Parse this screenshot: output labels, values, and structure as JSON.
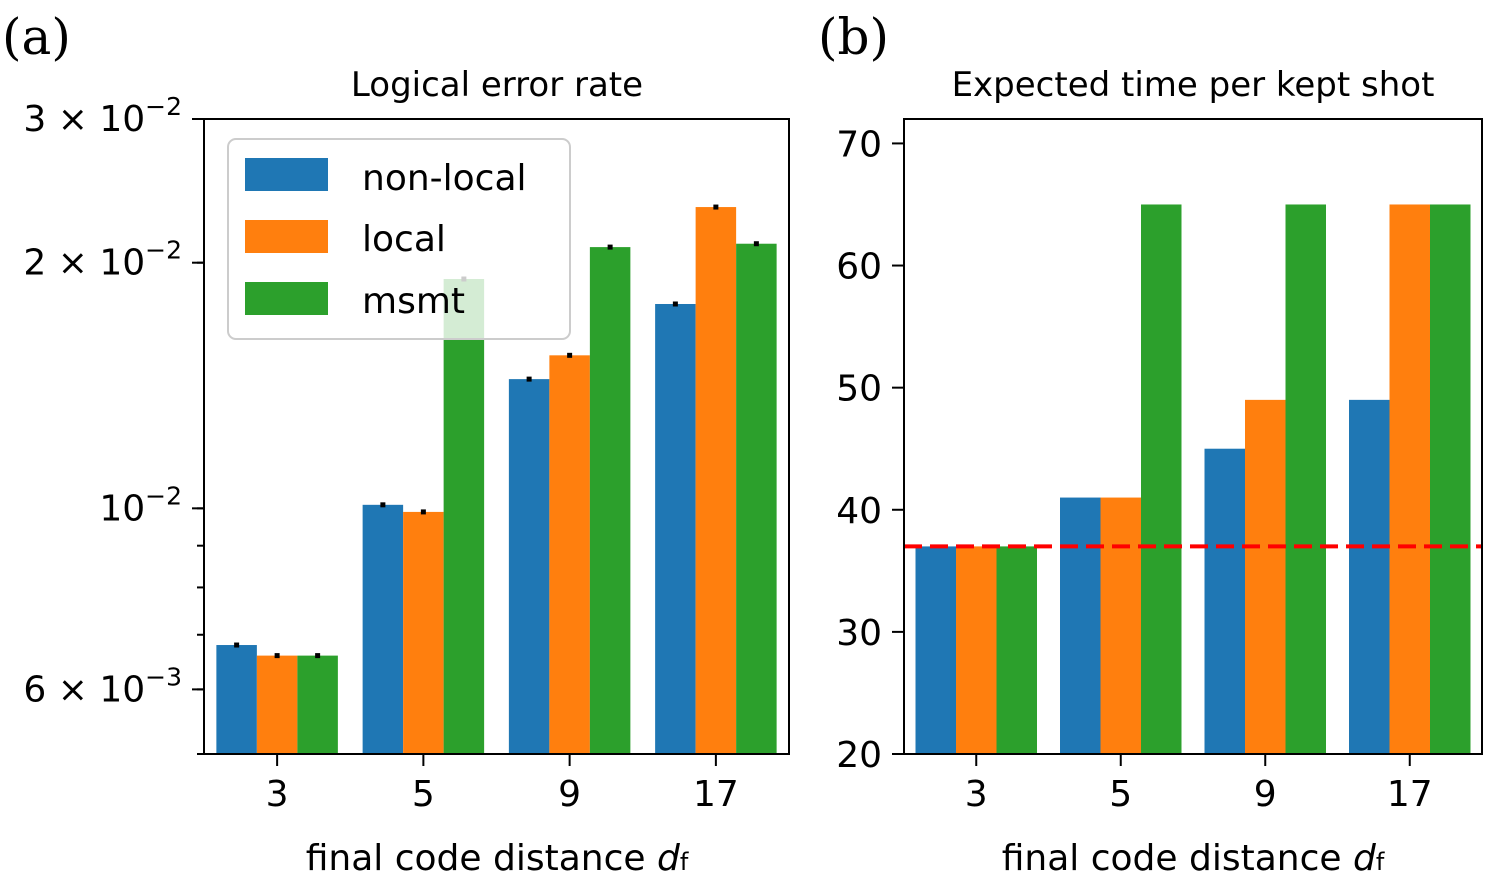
{
  "panels": {
    "a": {
      "label": "(a)"
    },
    "b": {
      "label": "(b)"
    }
  },
  "colors": {
    "non-local": "#1f77b4",
    "local": "#ff7f0e",
    "msmt": "#2ca02c",
    "reference_line": "#ff0000"
  },
  "chart_data": [
    {
      "type": "bar",
      "title": "Logical error rate",
      "xlabel": "final code distance",
      "xlabel_symbol": "d",
      "xlabel_subscript": "f",
      "yscale": "log",
      "ylim": [
        0.005,
        0.03
      ],
      "yticks": [
        {
          "value": 0.03,
          "base": "3 × 10",
          "exp": "−2"
        },
        {
          "value": 0.02,
          "base": "2 × 10",
          "exp": "−2"
        },
        {
          "value": 0.01,
          "base": "10",
          "exp": "−2"
        },
        {
          "value": 0.006,
          "base": "6 × 10",
          "exp": "−3"
        }
      ],
      "categories": [
        "3",
        "5",
        "9",
        "17"
      ],
      "series": [
        {
          "name": "non-local",
          "values": [
            0.0068,
            0.0101,
            0.0144,
            0.0178
          ]
        },
        {
          "name": "local",
          "values": [
            0.0066,
            0.0099,
            0.0154,
            0.0234
          ]
        },
        {
          "name": "msmt",
          "values": [
            0.0066,
            0.0191,
            0.0209,
            0.0211
          ]
        }
      ],
      "error_bars": true,
      "legend": {
        "placement": "upper-left",
        "entries": [
          "non-local",
          "local",
          "msmt"
        ]
      }
    },
    {
      "type": "bar",
      "title": "Expected time per kept shot",
      "xlabel": "final code distance",
      "xlabel_symbol": "d",
      "xlabel_subscript": "f",
      "yscale": "linear",
      "ylim": [
        20,
        72
      ],
      "yticks": [
        20,
        30,
        40,
        50,
        60,
        70
      ],
      "categories": [
        "3",
        "5",
        "9",
        "17"
      ],
      "series": [
        {
          "name": "non-local",
          "values": [
            37,
            41,
            45,
            49
          ]
        },
        {
          "name": "local",
          "values": [
            37,
            41,
            49,
            65
          ]
        },
        {
          "name": "msmt",
          "values": [
            37,
            65,
            65,
            65
          ]
        }
      ],
      "reference_line": {
        "y": 37,
        "style": "dashed"
      }
    }
  ]
}
